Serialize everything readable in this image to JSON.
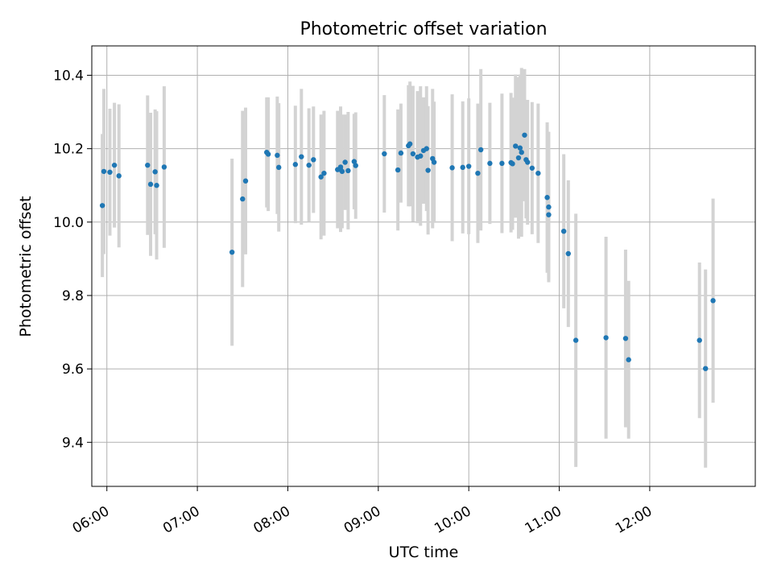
{
  "chart_data": {
    "type": "scatter",
    "title": "Photometric offset variation",
    "xlabel": "UTC time",
    "ylabel": "Photometric offset",
    "x_unit": "UTC time (HH:MM)",
    "xlim": [
      "05:50",
      "13:10"
    ],
    "ylim": [
      9.28,
      10.48
    ],
    "x_ticks": [
      "06:00",
      "07:00",
      "08:00",
      "09:00",
      "10:00",
      "11:00",
      "12:00"
    ],
    "y_ticks": [
      "9.4",
      "9.6",
      "9.8",
      "10.0",
      "10.2",
      "10.4"
    ],
    "grid": true,
    "legend": "none",
    "colors": {
      "marker": "#1f77b4",
      "errorbar": "#d3d3d3",
      "grid": "#b0b0b0"
    },
    "series": [
      {
        "x": [
          "05:57",
          "05:58",
          "06:02",
          "06:05",
          "06:08",
          "06:27",
          "06:29",
          "06:32",
          "06:33",
          "06:38",
          "07:23",
          "07:30",
          "07:32",
          "07:46",
          "07:47",
          "07:53",
          "07:54",
          "08:05",
          "08:09",
          "08:14",
          "08:17",
          "08:22",
          "08:24",
          "08:33",
          "08:35",
          "08:35",
          "08:36",
          "08:38",
          "08:40",
          "08:44",
          "08:45",
          "09:04",
          "09:13",
          "09:15",
          "09:20",
          "09:21",
          "09:23",
          "09:26",
          "09:28",
          "09:30",
          "09:32",
          "09:33",
          "09:36",
          "09:37",
          "09:49",
          "09:56",
          "10:00",
          "10:06",
          "10:08",
          "10:14",
          "10:22",
          "10:28",
          "10:29",
          "10:31",
          "10:33",
          "10:34",
          "10:35",
          "10:37",
          "10:38",
          "10:39",
          "10:42",
          "10:46",
          "10:52",
          "10:53",
          "10:53",
          "11:03",
          "11:06",
          "11:11",
          "11:31",
          "11:44",
          "11:46",
          "12:33",
          "12:37",
          "12:42"
        ],
        "y": [
          10.045,
          10.138,
          10.136,
          10.155,
          10.126,
          10.155,
          10.103,
          10.137,
          10.1,
          10.15,
          9.918,
          10.063,
          10.112,
          10.19,
          10.185,
          10.182,
          10.149,
          10.157,
          10.178,
          10.155,
          10.17,
          10.123,
          10.133,
          10.143,
          10.143,
          10.15,
          10.138,
          10.163,
          10.14,
          10.165,
          10.154,
          10.186,
          10.142,
          10.188,
          10.208,
          10.213,
          10.186,
          10.177,
          10.18,
          10.195,
          10.2,
          10.141,
          10.173,
          10.163,
          10.148,
          10.149,
          10.152,
          10.133,
          10.197,
          10.16,
          10.16,
          10.162,
          10.159,
          10.207,
          10.175,
          10.202,
          10.19,
          10.237,
          10.17,
          10.163,
          10.147,
          10.133,
          10.067,
          10.041,
          10.02,
          9.975,
          9.914,
          9.678,
          9.685,
          9.683,
          9.625,
          9.678,
          9.601,
          9.786
        ],
        "err": [
          0.195,
          0.225,
          0.173,
          0.17,
          0.195,
          0.19,
          0.195,
          0.17,
          0.202,
          0.22,
          0.255,
          0.24,
          0.2,
          0.15,
          0.155,
          0.16,
          0.175,
          0.16,
          0.185,
          0.155,
          0.145,
          0.17,
          0.17,
          0.16,
          0.17,
          0.165,
          0.155,
          0.13,
          0.16,
          0.13,
          0.145,
          0.16,
          0.165,
          0.135,
          0.165,
          0.17,
          0.185,
          0.18,
          0.19,
          0.145,
          0.17,
          0.175,
          0.19,
          0.165,
          0.2,
          0.18,
          0.185,
          0.19,
          0.22,
          0.165,
          0.19,
          0.19,
          0.18,
          0.195,
          0.22,
          0.2,
          0.23,
          0.18,
          0.16,
          0.17,
          0.18,
          0.19,
          0.205,
          0.205,
          0.175,
          0.21,
          0.2,
          0.345,
          0.275,
          0.242,
          0.215,
          0.212,
          0.27,
          0.278
        ]
      }
    ]
  }
}
